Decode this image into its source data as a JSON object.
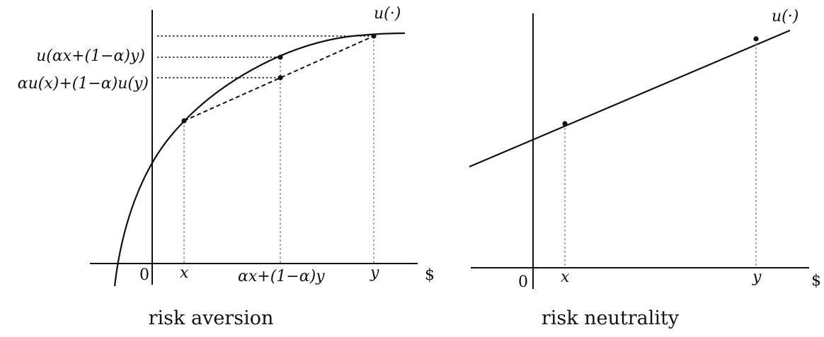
{
  "panels": [
    {
      "caption": "risk aversion",
      "function_label": "u(·)",
      "origin_label": "0",
      "x_label": "x",
      "y_label": "y",
      "mix_label": "αx+(1−α)y",
      "currency_label": "$",
      "utility_of_mix_label": "u(αx+(1−α)y)",
      "expected_utility_label": "αu(x)+(1−α)u(y)"
    },
    {
      "caption": "risk neutrality",
      "function_label": "u(·)",
      "origin_label": "0",
      "x_label": "x",
      "y_label": "y",
      "currency_label": "$"
    }
  ]
}
